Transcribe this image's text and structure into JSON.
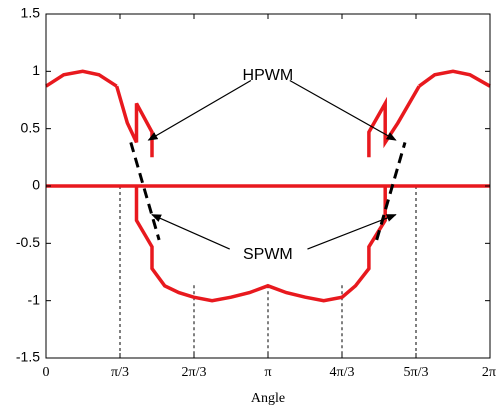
{
  "chart_data": {
    "type": "line",
    "title": "",
    "xlabel": "Angle",
    "ylabel": "",
    "xlim": [
      0,
      6.2832
    ],
    "ylim": [
      -1.5,
      1.5
    ],
    "grid": false,
    "legend": "none",
    "y_ticks": [
      -1.5,
      -1,
      -0.5,
      0,
      0.5,
      1,
      1.5
    ],
    "y_tick_labels": [
      "-1.5",
      "-1",
      "-0.5",
      "0",
      "0.5",
      "1",
      "1.5"
    ],
    "x_ticks": [
      0,
      1.0472,
      2.0944,
      3.1416,
      4.1888,
      5.236,
      6.2832
    ],
    "x_tick_labels": [
      "0",
      "π/3",
      "2π/3",
      "π",
      "4π/3",
      "5π/3",
      "2π"
    ],
    "colors": {
      "hpwm": "#e8191e",
      "spwm": "#000000",
      "axis": "#000000"
    },
    "series": [
      {
        "role": "hpwm-upper-left",
        "x": [
          0,
          0.25,
          0.52,
          0.75,
          1.0
        ],
        "y": [
          0.87,
          0.97,
          1.0,
          0.97,
          0.87
        ]
      },
      {
        "role": "hpwm-upper-left-pulse",
        "x": [
          1.0,
          1.15,
          1.28,
          1.28,
          1.5,
          1.5
        ],
        "y": [
          0.87,
          0.55,
          0.38,
          0.72,
          0.47,
          0.25
        ]
      },
      {
        "role": "hpwm-lower-left",
        "x": [
          1.28,
          1.28,
          1.5,
          1.5,
          1.68,
          1.88,
          2.09,
          2.35,
          2.62,
          2.88,
          3.14,
          3.4,
          3.67,
          3.93,
          4.19,
          4.38,
          4.57,
          4.57,
          4.8,
          4.8
        ],
        "y": [
          0,
          -0.3,
          -0.53,
          -0.72,
          -0.87,
          -0.93,
          -0.97,
          -1.0,
          -0.97,
          -0.93,
          -0.87,
          -0.93,
          -0.97,
          -1.0,
          -0.97,
          -0.87,
          -0.72,
          -0.53,
          -0.3,
          0
        ]
      },
      {
        "role": "hpwm-upper-right-pulse",
        "x": [
          4.57,
          4.57,
          4.8,
          4.8,
          4.98,
          5.28
        ],
        "y": [
          0.25,
          0.47,
          0.72,
          0.38,
          0.55,
          0.87
        ]
      },
      {
        "role": "hpwm-upper-right",
        "x": [
          5.28,
          5.5,
          5.76,
          6.0,
          6.2832
        ],
        "y": [
          0.87,
          0.97,
          1.0,
          0.97,
          0.87
        ]
      },
      {
        "role": "hpwm-zero",
        "x": [
          0,
          6.2832
        ],
        "y": [
          0,
          0
        ]
      },
      {
        "role": "spwm-left",
        "x": [
          1.2,
          1.6
        ],
        "y": [
          0.38,
          -0.47
        ]
      },
      {
        "role": "spwm-right",
        "x": [
          4.68,
          5.08
        ],
        "y": [
          -0.47,
          0.38
        ]
      }
    ],
    "annotations": [
      {
        "text": "HPWM",
        "x": 3.14,
        "y": 0.96
      },
      {
        "text": "SPWM",
        "x": 3.14,
        "y": -0.6
      }
    ],
    "arrows": [
      {
        "from": [
          2.9,
          0.92
        ],
        "to": [
          1.45,
          0.4
        ]
      },
      {
        "from": [
          3.45,
          0.92
        ],
        "to": [
          4.95,
          0.4
        ]
      },
      {
        "from": [
          2.6,
          -0.55
        ],
        "to": [
          1.5,
          -0.25
        ]
      },
      {
        "from": [
          3.7,
          -0.55
        ],
        "to": [
          4.95,
          -0.25
        ]
      }
    ],
    "guides": [
      {
        "x": 1.0472,
        "y": 0
      },
      {
        "x": 2.0944,
        "y": -0.866
      },
      {
        "x": 3.1416,
        "y": -0.866
      },
      {
        "x": 4.1888,
        "y": -0.866
      },
      {
        "x": 5.236,
        "y": 0
      }
    ]
  }
}
